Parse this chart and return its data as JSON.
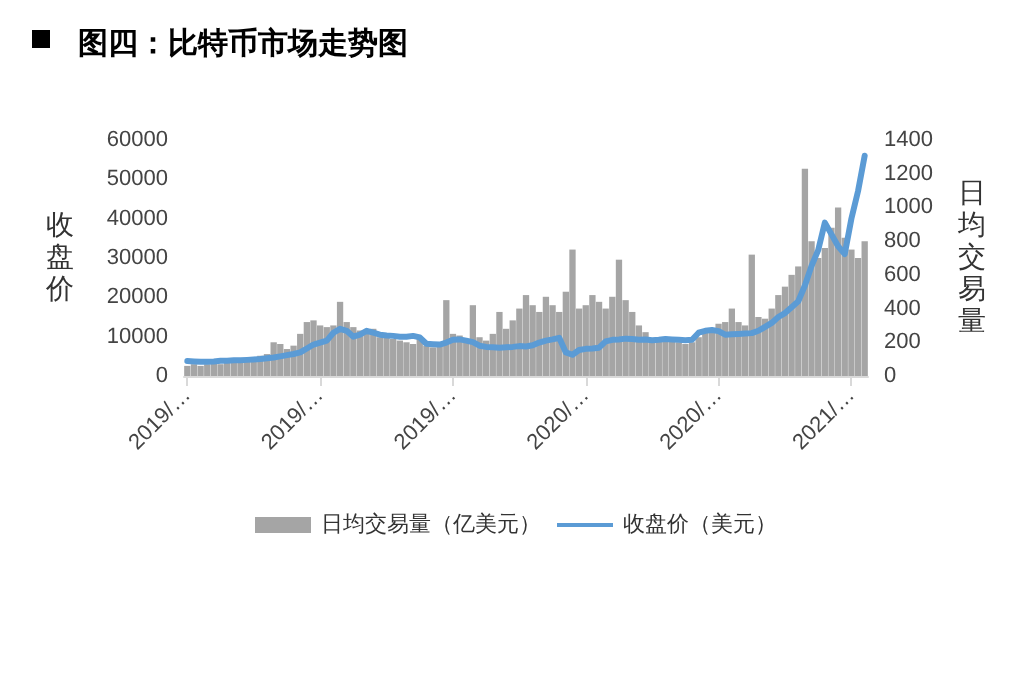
{
  "chart_data": {
    "type": "bar",
    "title": "图四：比特币市场走势图",
    "ylabel": "收盘价",
    "y2label": "日均交易量",
    "categories": [
      "2019/…",
      null,
      null,
      null,
      null,
      null,
      null,
      null,
      null,
      null,
      null,
      null,
      null,
      null,
      null,
      null,
      null,
      null,
      null,
      null,
      "2019/…",
      null,
      null,
      null,
      null,
      null,
      null,
      null,
      null,
      null,
      null,
      null,
      null,
      null,
      null,
      null,
      null,
      null,
      null,
      null,
      "2019/…",
      null,
      null,
      null,
      null,
      null,
      null,
      null,
      null,
      null,
      null,
      null,
      null,
      null,
      null,
      null,
      null,
      null,
      null,
      null,
      "2020/…",
      null,
      null,
      null,
      null,
      null,
      null,
      null,
      null,
      null,
      null,
      null,
      null,
      null,
      null,
      null,
      null,
      null,
      null,
      null,
      "2020/…",
      null,
      null,
      null,
      null,
      null,
      null,
      null,
      null,
      null,
      null,
      null,
      null,
      null,
      null,
      null,
      null,
      null,
      null,
      null,
      "2021/…",
      null,
      null
    ],
    "series": [
      {
        "name": "日均交易量（亿美元）",
        "axis": "y2",
        "color": "#a5a5a5",
        "values": [
          60,
          70,
          60,
          70,
          80,
          70,
          80,
          90,
          90,
          100,
          110,
          120,
          130,
          200,
          190,
          160,
          180,
          250,
          320,
          330,
          300,
          290,
          300,
          440,
          320,
          290,
          270,
          250,
          280,
          230,
          250,
          220,
          210,
          200,
          190,
          220,
          180,
          170,
          200,
          450,
          250,
          240,
          220,
          420,
          230,
          210,
          250,
          380,
          280,
          330,
          400,
          480,
          420,
          380,
          470,
          420,
          380,
          500,
          750,
          400,
          420,
          480,
          440,
          400,
          470,
          690,
          450,
          380,
          300,
          260,
          220,
          230,
          220,
          210,
          200,
          190,
          200,
          230,
          260,
          280,
          310,
          320,
          400,
          320,
          300,
          720,
          350,
          340,
          400,
          480,
          530,
          600,
          650,
          1230,
          800,
          700,
          760,
          880,
          1000,
          820,
          750,
          700,
          800
        ]
      },
      {
        "name": "收盘价（美元）",
        "type": "line",
        "color": "#5b9bd5",
        "values": [
          3800,
          3700,
          3600,
          3600,
          3700,
          3900,
          3900,
          4000,
          4000,
          4100,
          4200,
          4300,
          4500,
          4700,
          5000,
          5300,
          5600,
          6000,
          7000,
          8000,
          8500,
          9000,
          11000,
          12000,
          11500,
          10000,
          10500,
          11500,
          11000,
          10500,
          10300,
          10200,
          10000,
          10000,
          10200,
          9800,
          8200,
          8100,
          8000,
          8500,
          9200,
          9300,
          9000,
          8600,
          7700,
          7400,
          7300,
          7200,
          7300,
          7400,
          7600,
          7500,
          7800,
          8500,
          9000,
          9300,
          9700,
          6000,
          5400,
          6600,
          6900,
          7000,
          7200,
          8800,
          9200,
          9300,
          9500,
          9400,
          9200,
          9300,
          9100,
          9200,
          9400,
          9300,
          9200,
          9100,
          9200,
          11000,
          11500,
          11700,
          11400,
          10500,
          10600,
          10700,
          10800,
          10900,
          11500,
          12500,
          13500,
          15000,
          16000,
          17500,
          19000,
          23000,
          28000,
          32000,
          39000,
          36000,
          33000,
          31000,
          40000,
          47000,
          56000
        ]
      }
    ],
    "ylim": [
      0,
      60000
    ],
    "yticks": [
      0,
      10000,
      20000,
      30000,
      40000,
      50000,
      60000
    ],
    "y2lim": [
      0,
      1400
    ],
    "y2ticks": [
      0,
      200,
      400,
      600,
      800,
      1000,
      1200,
      1400
    ],
    "legend": "bottom",
    "grid": false,
    "marker": "none",
    "line_style": "solid"
  }
}
